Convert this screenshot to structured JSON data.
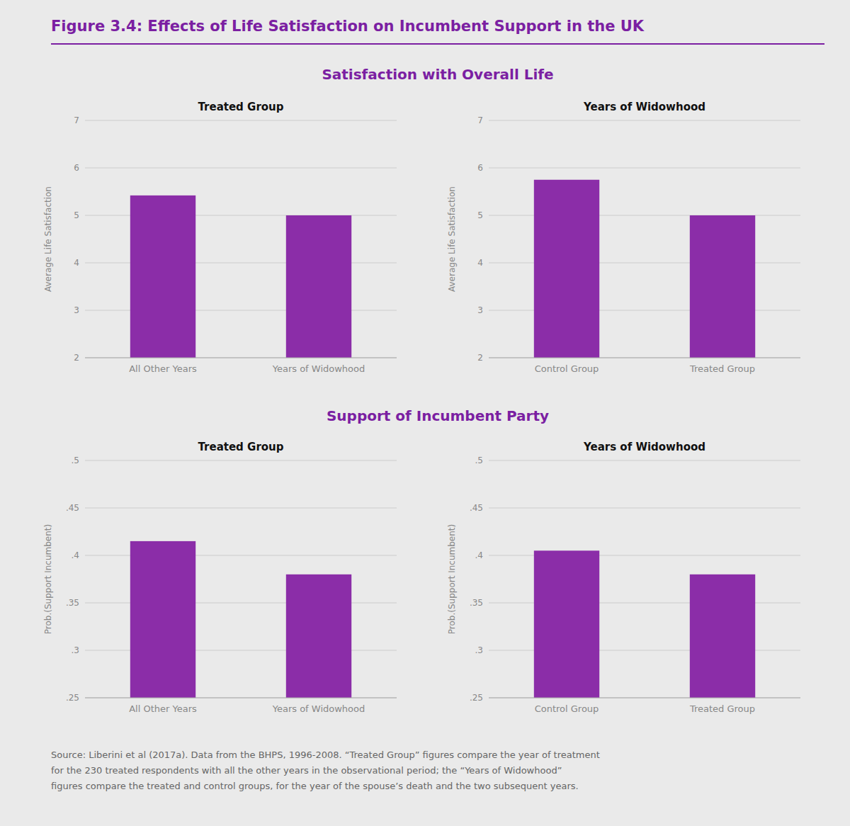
{
  "title": "Figure 3.4: Effects of Life Satisfaction on Incumbent Support in the UK",
  "annotations": [
    "Satisfaction with Overall Life",
    "Support of Incumbent Party",
    "Source: Liberini et al (2017a). Data from the BHPS, 1996-2008. “Treated Group” figures compare the year of treatment\nfor the 230 treated respondents with all the other years in the observational period; the “Years of Widowhood”\nfigures compare the treated and control groups, for the year of the spouse’s death and the two subsequent years."
  ],
  "chart_data": [
    {
      "type": "bar",
      "title": "Treated Group",
      "categories": [
        "All Other Years",
        "Years of Widowhood"
      ],
      "values": [
        5.42,
        5.0
      ],
      "color": "#8B2DA8",
      "ylabel": "Average Life Satisfaction",
      "ylim": [
        2,
        7
      ],
      "yticks": [
        2,
        3,
        4,
        5,
        6,
        7
      ],
      "grid": true
    },
    {
      "type": "bar",
      "title": "Years of Widowhood",
      "categories": [
        "Control Group",
        "Treated Group"
      ],
      "values": [
        5.75,
        5.0
      ],
      "color": "#8B2DA8",
      "ylabel": "Average Life Satisfaction",
      "ylim": [
        2,
        7
      ],
      "yticks": [
        2,
        3,
        4,
        5,
        6,
        7
      ],
      "grid": true
    },
    {
      "type": "bar",
      "title": "Treated Group",
      "categories": [
        "All Other Years",
        "Years of Widowhood"
      ],
      "values": [
        0.415,
        0.38
      ],
      "color": "#8B2DA8",
      "ylabel": "Prob.(Support Incumbent)",
      "ylim": [
        0.25,
        0.5
      ],
      "yticks": [
        {
          "value": 0.25,
          "label": ".25"
        },
        {
          "value": 0.3,
          "label": ".3"
        },
        {
          "value": 0.35,
          "label": ".35"
        },
        {
          "value": 0.4,
          "label": ".4"
        },
        {
          "value": 0.45,
          "label": ".45"
        },
        {
          "value": 0.5,
          "label": ".5"
        }
      ],
      "grid": true
    },
    {
      "type": "bar",
      "title": "Years of Widowhood",
      "categories": [
        "Control Group",
        "Treated Group"
      ],
      "values": [
        0.405,
        0.38
      ],
      "color": "#8B2DA8",
      "ylabel": "Prob.(Support Incumbent)",
      "ylim": [
        0.25,
        0.5
      ],
      "yticks": [
        {
          "value": 0.25,
          "label": ".25"
        },
        {
          "value": 0.3,
          "label": ".3"
        },
        {
          "value": 0.35,
          "label": ".35"
        },
        {
          "value": 0.4,
          "label": ".4"
        },
        {
          "value": 0.45,
          "label": ".45"
        },
        {
          "value": 0.5,
          "label": ".5"
        }
      ],
      "grid": true
    }
  ]
}
